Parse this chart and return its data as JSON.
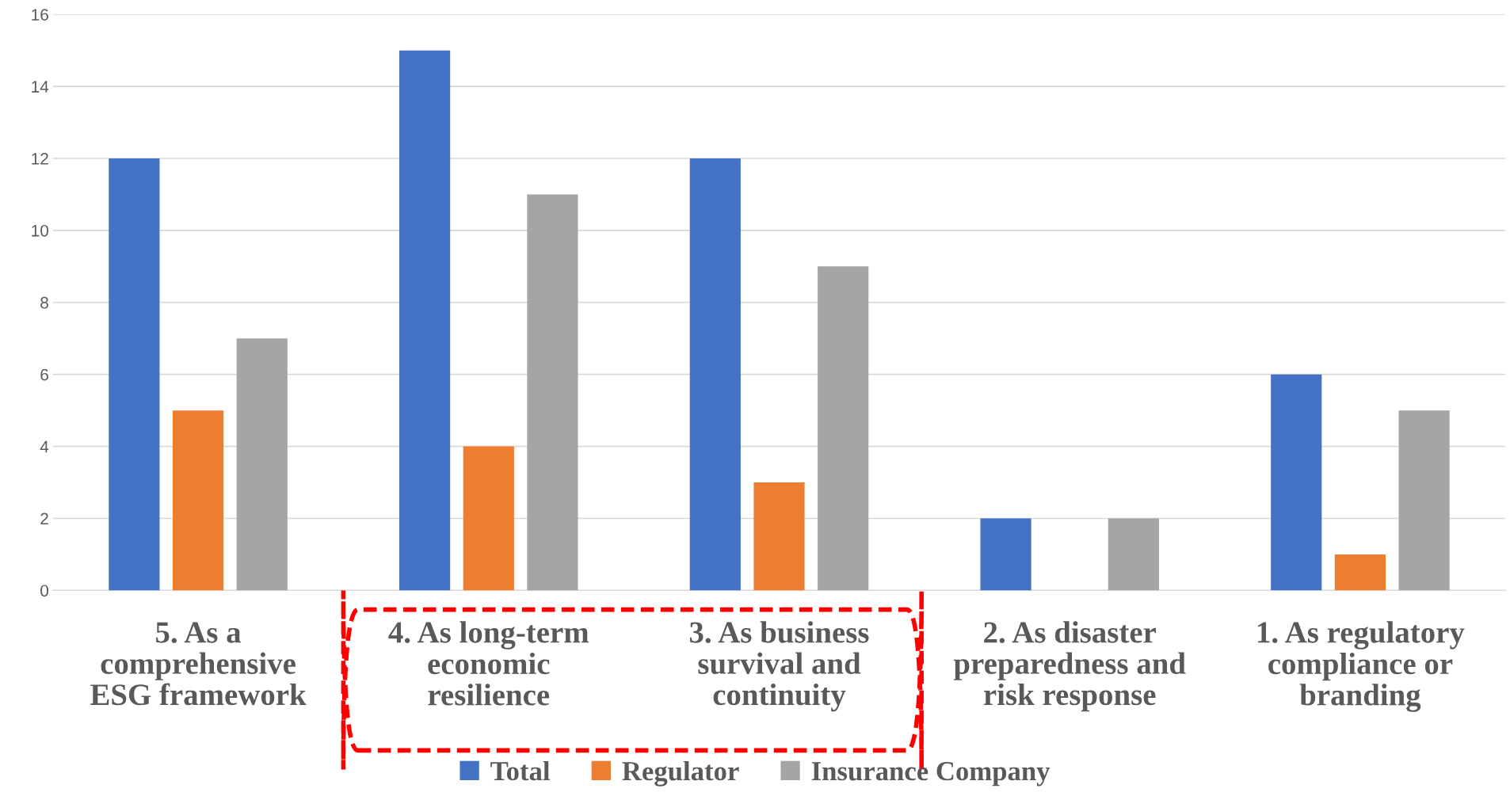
{
  "chart_data": {
    "type": "bar",
    "categories": [
      "5. As a\ncomprehensive\nESG framework",
      "4. As long-term\neconomic\nresilience",
      "3. As business\nsurvival and\ncontinuity",
      "2. As disaster\npreparedness and\nrisk response",
      "1. As regulatory\ncompliance or\nbranding"
    ],
    "series": [
      {
        "name": "Total",
        "color": "#4472c4",
        "values": [
          12,
          15,
          12,
          2,
          6
        ]
      },
      {
        "name": "Regulator",
        "color": "#ed7d31",
        "values": [
          5,
          4,
          3,
          0,
          1
        ]
      },
      {
        "name": "Insurance Company",
        "color": "#a5a5a5",
        "values": [
          7,
          11,
          9,
          2,
          5
        ]
      }
    ],
    "ylim": [
      0,
      16
    ],
    "yticks": [
      0,
      2,
      4,
      6,
      8,
      10,
      12,
      14,
      16
    ],
    "grid": "y",
    "legend": "bottom"
  }
}
